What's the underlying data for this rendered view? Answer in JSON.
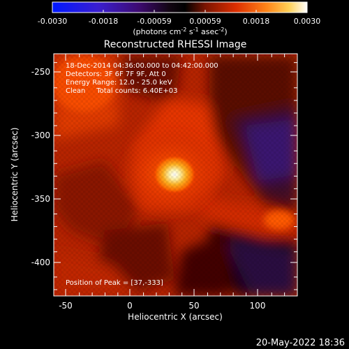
{
  "colorbar": {
    "tick_labels": [
      "-0.0030",
      "-0.0018",
      "-0.00059",
      "0.00059",
      "0.0018",
      "0.0030"
    ],
    "unit_main": "(photons cm",
    "unit_sup1": "-2",
    "unit_mid1": " s",
    "unit_sup2": "-1",
    "unit_mid2": " asec",
    "unit_sup3": "-2",
    "unit_end": ")",
    "colors": [
      "#0018ff",
      "#4a0fa8",
      "#1a0a14",
      "#000000",
      "#8a1f00",
      "#e23200",
      "#ff7a10",
      "#ffc040",
      "#fff3b8",
      "#ffffff"
    ]
  },
  "image": {
    "title": "Reconstructed RHESSI Image",
    "info_lines": [
      "18-Dec-2014 04:36:00.000 to 04:42:00.000",
      "Detectors: 3F 6F 7F 9F, Att 0",
      "Energy Range: 12.0 - 25.0 keV",
      "Clean     Total counts: 6.40E+03"
    ],
    "peak_label": "Position of Peak = [37,-333]",
    "x_axis_label": "Heliocentric X (arcsec)",
    "y_axis_label": "Heliocentric Y (arcsec)",
    "x_tick_labels": [
      "-50",
      "0",
      "50",
      "100"
    ],
    "y_tick_labels": [
      "-250",
      "-300",
      "-350",
      "-400"
    ],
    "x_range": [
      -60,
      130
    ],
    "y_range": [
      -425,
      -233
    ],
    "peak_position": [
      37,
      -333
    ]
  },
  "footer": {
    "date_stamp": "20-May-2022 18:36"
  }
}
